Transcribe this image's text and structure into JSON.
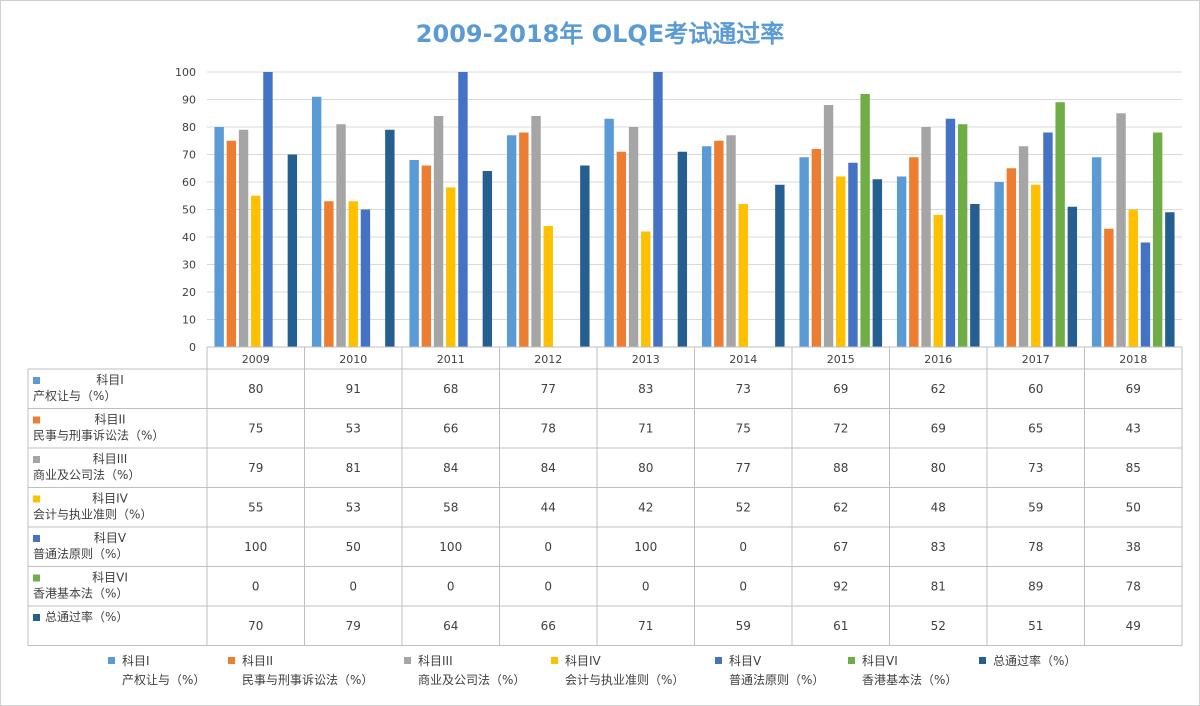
{
  "chart_data": {
    "type": "bar",
    "title": "2009-2018年 OLQE考试通过率",
    "categories": [
      "2009",
      "2010",
      "2011",
      "2012",
      "2013",
      "2014",
      "2015",
      "2016",
      "2017",
      "2018"
    ],
    "ylim": [
      0,
      100
    ],
    "yticks": [
      0,
      10,
      20,
      30,
      40,
      50,
      60,
      70,
      80,
      90,
      100
    ],
    "grid": true,
    "legend_position": "bottom",
    "series": [
      {
        "name_line1": "科目I",
        "name_line2": "产权让与（%）",
        "color": "#5b9bd5",
        "values": [
          80,
          91,
          68,
          77,
          83,
          73,
          69,
          62,
          60,
          69
        ]
      },
      {
        "name_line1": "科目II",
        "name_line2": "民事与刑事诉讼法（%）",
        "color": "#ed7d31",
        "values": [
          75,
          53,
          66,
          78,
          71,
          75,
          72,
          69,
          65,
          43
        ]
      },
      {
        "name_line1": "科目III",
        "name_line2": "商业及公司法（%）",
        "color": "#a5a5a5",
        "values": [
          79,
          81,
          84,
          84,
          80,
          77,
          88,
          80,
          73,
          85
        ]
      },
      {
        "name_line1": "科目IV",
        "name_line2": "会计与执业准则（%）",
        "color": "#ffc000",
        "values": [
          55,
          53,
          58,
          44,
          42,
          52,
          62,
          48,
          59,
          50
        ]
      },
      {
        "name_line1": "科目V",
        "name_line2": "普通法原则（%）",
        "color": "#4472c4",
        "values": [
          100,
          50,
          100,
          0,
          100,
          0,
          67,
          83,
          78,
          38
        ]
      },
      {
        "name_line1": "科目VI",
        "name_line2": "香港基本法（%）",
        "color": "#70ad47",
        "values": [
          0,
          0,
          0,
          0,
          0,
          0,
          92,
          81,
          89,
          78
        ]
      },
      {
        "name_line1": "总通过率（%）",
        "name_line2": "",
        "color": "#255e91",
        "values": [
          70,
          79,
          64,
          66,
          71,
          59,
          61,
          52,
          51,
          49
        ]
      }
    ]
  }
}
